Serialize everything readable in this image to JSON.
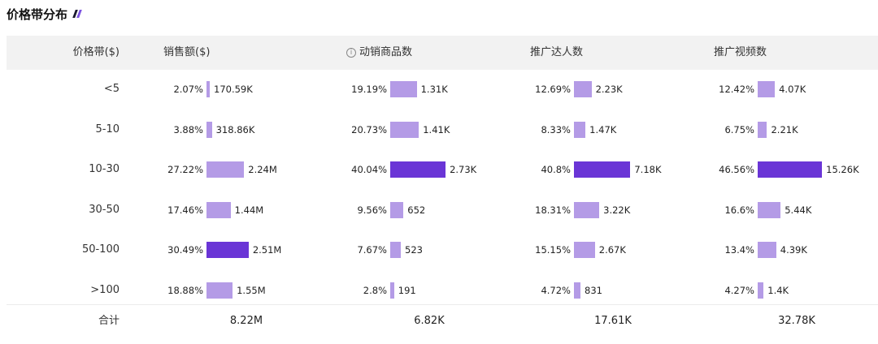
{
  "title": "价格带分布",
  "columns": {
    "band": "价格带($)",
    "sales": "销售额($)",
    "products": "动销商品数",
    "influencers": "推广达人数",
    "videos": "推广视频数"
  },
  "info_icon": "info-icon",
  "colors": {
    "bar": "#b49be6",
    "bar_highlight": "#6a35d6",
    "header_bg": "#f2f2f2"
  },
  "chart_data": {
    "type": "table",
    "title": "价格带分布",
    "categories": [
      "<5",
      "5-10",
      "10-30",
      "30-50",
      "50-100",
      ">100"
    ],
    "series": [
      {
        "name": "销售额($)",
        "percents": [
          "2.07%",
          "3.88%",
          "27.22%",
          "17.46%",
          "30.49%",
          "18.88%"
        ],
        "values": [
          2.07,
          3.88,
          27.22,
          17.46,
          30.49,
          18.88
        ],
        "labels": [
          "170.59K",
          "318.86K",
          "2.24M",
          "1.44M",
          "2.51M",
          "1.55M"
        ],
        "highlight_index": 4
      },
      {
        "name": "动销商品数",
        "percents": [
          "19.19%",
          "20.73%",
          "40.04%",
          "9.56%",
          "7.67%",
          "2.8%"
        ],
        "values": [
          19.19,
          20.73,
          40.04,
          9.56,
          7.67,
          2.8
        ],
        "labels": [
          "1.31K",
          "1.41K",
          "2.73K",
          "652",
          "523",
          "191"
        ],
        "highlight_index": 2
      },
      {
        "name": "推广达人数",
        "percents": [
          "12.69%",
          "8.33%",
          "40.8%",
          "18.31%",
          "15.15%",
          "4.72%"
        ],
        "values": [
          12.69,
          8.33,
          40.8,
          18.31,
          15.15,
          4.72
        ],
        "labels": [
          "2.23K",
          "1.47K",
          "7.18K",
          "3.22K",
          "2.67K",
          "831"
        ],
        "highlight_index": 2
      },
      {
        "name": "推广视频数",
        "percents": [
          "12.42%",
          "6.75%",
          "46.56%",
          "16.6%",
          "13.4%",
          "4.27%"
        ],
        "values": [
          12.42,
          6.75,
          46.56,
          16.6,
          13.4,
          4.27
        ],
        "labels": [
          "4.07K",
          "2.21K",
          "15.26K",
          "5.44K",
          "4.39K",
          "1.4K"
        ],
        "highlight_index": 2
      }
    ],
    "totals": {
      "label": "合计",
      "values": [
        "8.22M",
        "6.82K",
        "17.61K",
        "32.78K"
      ]
    }
  }
}
